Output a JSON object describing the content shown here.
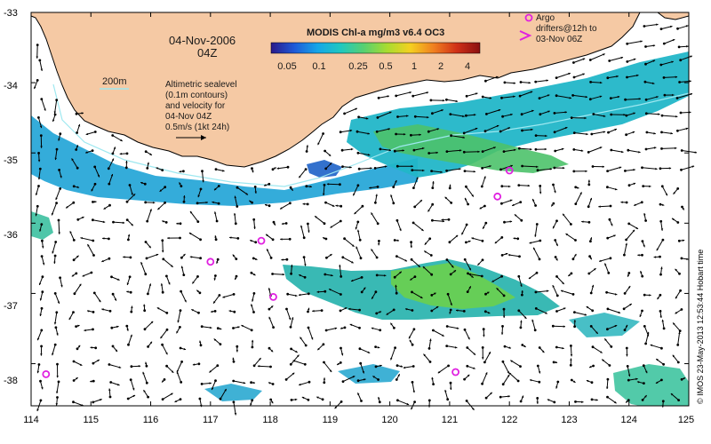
{
  "map": {
    "date_line": "04-Nov-2006",
    "time_line": "04Z",
    "product_title": "MODIS Chl-a mg/m3 v6.4 OC3",
    "colorbar_ticks": [
      "0.05",
      "0.1",
      "0.25",
      "0.5",
      "1",
      "2",
      "4"
    ],
    "isobath_label": "200m",
    "altimetry_note": [
      "Altimetric sealevel",
      "(0.1m contours)",
      "and velocity for",
      "04-Nov 04Z",
      "0.5m/s (1kt 24h)"
    ],
    "argo_legend": [
      "Argo",
      "drifters@12h to",
      "03-Nov 06Z"
    ],
    "credit": "© IMOS 23-May-2013 12:53:44 Hobart time",
    "lon_labels": [
      "114",
      "115",
      "116",
      "117",
      "118",
      "119",
      "120",
      "121",
      "122",
      "123",
      "124",
      "125"
    ],
    "lat_labels": [
      "-33",
      "-34",
      "-35",
      "-36",
      "-37",
      "-38"
    ],
    "extent": {
      "lon_min": 114,
      "lon_max": 125,
      "lat_min": -38.6,
      "lat_max": -33
    },
    "colors": {
      "land": "#f5c9a4",
      "land_edge": "#000000",
      "argo_marker": "#e020e0",
      "arrow": "#000000",
      "isobath": "#9ee8f0",
      "colorbar": [
        "#2a1a8a",
        "#1f5ad8",
        "#16a6e8",
        "#20c8c0",
        "#58d070",
        "#a8dc30",
        "#f4d020",
        "#f08020",
        "#d03018",
        "#8a1010"
      ]
    },
    "argo_positions": [
      {
        "lon": 117.85,
        "lat": -36.25
      },
      {
        "lon": 117.0,
        "lat": -36.55
      },
      {
        "lon": 118.05,
        "lat": -37.05
      },
      {
        "lon": 114.25,
        "lat": -38.15
      },
      {
        "lon": 121.1,
        "lat": -38.12
      },
      {
        "lon": 121.8,
        "lat": -35.62
      },
      {
        "lon": 122.0,
        "lat": -35.25
      }
    ]
  }
}
